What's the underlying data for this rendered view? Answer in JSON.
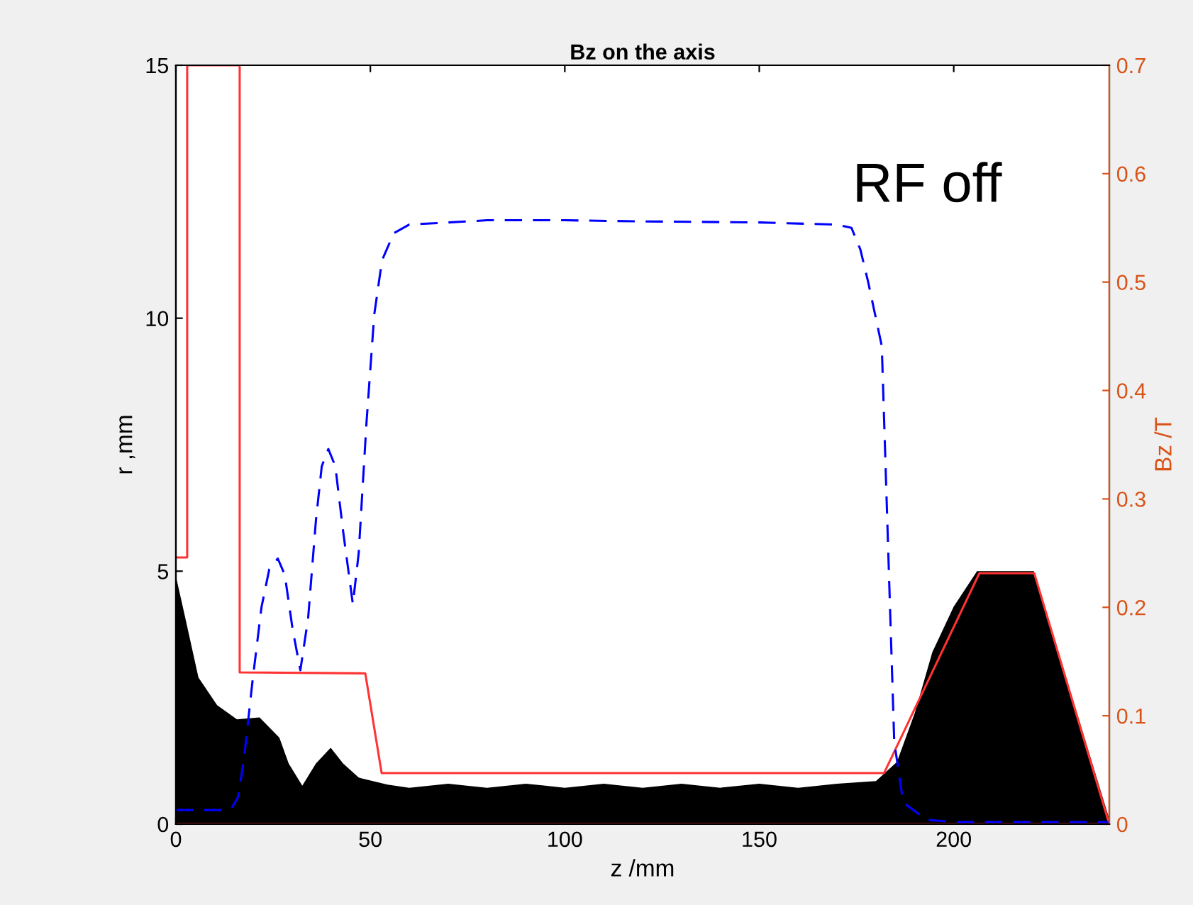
{
  "chart_data": {
    "type": "line",
    "title": "Bz on the axis",
    "xlabel": "z /mm",
    "ylabel": "r ,mm",
    "y2label": "Bz /T",
    "xlim": [
      0,
      240
    ],
    "xticks": [
      0,
      50,
      100,
      150,
      200
    ],
    "ylim": [
      0,
      15
    ],
    "yticks": [
      0,
      5,
      10,
      15
    ],
    "y2lim": [
      0,
      0.7
    ],
    "y2ticks": [
      0,
      0.1,
      0.2,
      0.3,
      0.4,
      0.5,
      0.6,
      0.7
    ],
    "grid": false,
    "legend": false,
    "annotations": [
      "RF off"
    ],
    "series": [
      {
        "type": "area",
        "color": "#000000",
        "x": [
          0,
          2.2,
          5.8,
          10.6,
          15.7,
          21.5,
          26.6,
          29,
          32.5,
          36,
          39.8,
          43,
          47,
          54.4,
          60,
          70,
          80,
          90,
          100,
          110,
          120,
          130,
          140,
          150,
          160,
          170,
          180,
          185.4,
          190,
          194.5,
          200,
          206,
          220.6,
          240
        ],
        "values": [
          4.9,
          4.15,
          2.9,
          2.35,
          2.07,
          2.11,
          1.71,
          1.2,
          0.76,
          1.2,
          1.51,
          1.2,
          0.92,
          0.78,
          0.72,
          0.8,
          0.72,
          0.8,
          0.72,
          0.8,
          0.72,
          0.8,
          0.72,
          0.8,
          0.72,
          0.8,
          0.85,
          1.23,
          2.2,
          3.4,
          4.3,
          5.0,
          5.0,
          0.1
        ]
      },
      {
        "color": "#ff3333",
        "line_style": "solid",
        "x": [
          0,
          2.9,
          2.9,
          16.4,
          16.4,
          48.7,
          52.9,
          182.1,
          206.6,
          220.7,
          240,
          0
        ],
        "values": [
          5.27,
          5.27,
          15,
          15,
          3,
          2.98,
          1.01,
          1.01,
          4.96,
          4.96,
          0,
          0
        ]
      },
      {
        "axis": "y2",
        "color": "#0000ff",
        "line_style": "dashed",
        "x": [
          0,
          12,
          14.4,
          16,
          17.5,
          19.7,
          22,
          24,
          26.2,
          28,
          30,
          32,
          34,
          36,
          37.5,
          39.2,
          41,
          43,
          45.5,
          47,
          49,
          51,
          53,
          56,
          60,
          80,
          100,
          120,
          150,
          170,
          173.7,
          176,
          178,
          181.5,
          184.7,
          187,
          193,
          200,
          240
        ],
        "values": [
          0.013,
          0.013,
          0.015,
          0.025,
          0.06,
          0.132,
          0.2,
          0.235,
          0.245,
          0.23,
          0.18,
          0.142,
          0.19,
          0.28,
          0.33,
          0.346,
          0.33,
          0.27,
          0.203,
          0.25,
          0.37,
          0.47,
          0.52,
          0.545,
          0.553,
          0.557,
          0.557,
          0.556,
          0.555,
          0.553,
          0.55,
          0.53,
          0.5,
          0.441,
          0.076,
          0.02,
          0.004,
          0.002,
          0.002
        ]
      }
    ]
  }
}
